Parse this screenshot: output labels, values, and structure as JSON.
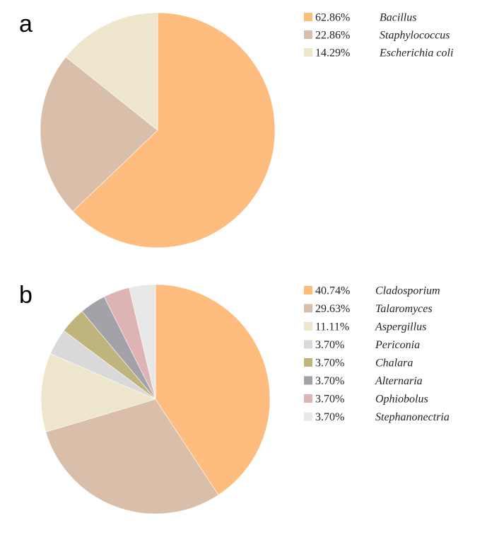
{
  "chart_data": [
    {
      "type": "pie",
      "panel_label": "a",
      "legend_placement": "right",
      "slices": [
        {
          "label": "Bacillus",
          "percent_label": "62.86%",
          "value": 62.86,
          "color": "#FFBC7F"
        },
        {
          "label": "Staphylococcus",
          "percent_label": "22.86%",
          "value": 22.86,
          "color": "#D9BFA9"
        },
        {
          "label": "Escherichia coli",
          "percent_label": "14.29%",
          "value": 14.29,
          "color": "#EEE6CC"
        }
      ]
    },
    {
      "type": "pie",
      "panel_label": "b",
      "legend_placement": "right",
      "slices": [
        {
          "label": "Cladosporium",
          "percent_label": "40.74%",
          "value": 40.74,
          "color": "#FFBC7F"
        },
        {
          "label": "Talaromyces",
          "percent_label": "29.63%",
          "value": 29.63,
          "color": "#D9BFA9"
        },
        {
          "label": "Aspergillus",
          "percent_label": "11.11%",
          "value": 11.11,
          "color": "#EEE6CC"
        },
        {
          "label": "Periconia",
          "percent_label": "3.70%",
          "value": 3.7,
          "color": "#D9D9D9"
        },
        {
          "label": "Chalara",
          "percent_label": "3.70%",
          "value": 3.7,
          "color": "#C0B47D"
        },
        {
          "label": "Alternaria",
          "percent_label": "3.70%",
          "value": 3.7,
          "color": "#A3A2A8"
        },
        {
          "label": "Ophiobolus",
          "percent_label": "3.70%",
          "value": 3.7,
          "color": "#DDB3B3"
        },
        {
          "label": "Stephanonectria",
          "percent_label": "3.70%",
          "value": 3.7,
          "color": "#E8E8E8"
        }
      ]
    }
  ]
}
